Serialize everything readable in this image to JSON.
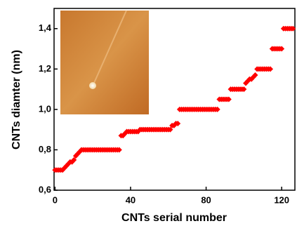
{
  "chart_data": {
    "type": "scatter",
    "x_label": "CNTs serial number",
    "y_label": "CNTs diamter (nm)",
    "color": "#ff0000",
    "x": [
      0,
      1,
      2,
      3,
      4,
      5,
      6,
      7,
      8,
      9,
      10,
      11,
      12,
      13,
      14,
      15,
      16,
      17,
      18,
      19,
      20,
      21,
      22,
      23,
      24,
      25,
      26,
      27,
      28,
      29,
      30,
      31,
      32,
      33,
      34,
      35,
      36,
      37,
      38,
      39,
      40,
      41,
      42,
      43,
      44,
      45,
      46,
      47,
      48,
      49,
      50,
      51,
      52,
      53,
      54,
      55,
      56,
      57,
      58,
      59,
      60,
      61,
      62,
      63,
      64,
      65,
      66,
      67,
      68,
      69,
      70,
      71,
      72,
      73,
      74,
      75,
      76,
      77,
      78,
      79,
      80,
      81,
      82,
      83,
      84,
      85,
      86,
      87,
      88,
      89,
      90,
      91,
      92,
      93,
      94,
      95,
      96,
      97,
      98,
      99,
      100,
      101,
      102,
      103,
      104,
      105,
      106,
      107,
      108,
      109,
      110,
      111,
      112,
      113,
      114,
      115,
      116,
      117,
      118,
      119,
      120,
      121,
      122,
      123,
      124,
      125,
      126
    ],
    "values": [
      0.7,
      0.7,
      0.7,
      0.7,
      0.7,
      0.71,
      0.72,
      0.73,
      0.74,
      0.74,
      0.75,
      0.77,
      0.78,
      0.79,
      0.8,
      0.8,
      0.8,
      0.8,
      0.8,
      0.8,
      0.8,
      0.8,
      0.8,
      0.8,
      0.8,
      0.8,
      0.8,
      0.8,
      0.8,
      0.8,
      0.8,
      0.8,
      0.8,
      0.8,
      0.8,
      0.87,
      0.87,
      0.88,
      0.89,
      0.89,
      0.89,
      0.89,
      0.89,
      0.89,
      0.89,
      0.9,
      0.9,
      0.9,
      0.9,
      0.9,
      0.9,
      0.9,
      0.9,
      0.9,
      0.9,
      0.9,
      0.9,
      0.9,
      0.9,
      0.9,
      0.9,
      0.9,
      0.92,
      0.92,
      0.93,
      0.93,
      1.0,
      1.0,
      1.0,
      1.0,
      1.0,
      1.0,
      1.0,
      1.0,
      1.0,
      1.0,
      1.0,
      1.0,
      1.0,
      1.0,
      1.0,
      1.0,
      1.0,
      1.0,
      1.0,
      1.0,
      1.0,
      1.05,
      1.05,
      1.05,
      1.05,
      1.05,
      1.05,
      1.1,
      1.1,
      1.1,
      1.1,
      1.1,
      1.1,
      1.1,
      1.1,
      1.13,
      1.14,
      1.15,
      1.15,
      1.16,
      1.17,
      1.2,
      1.2,
      1.2,
      1.2,
      1.2,
      1.2,
      1.2,
      1.2,
      1.3,
      1.3,
      1.3,
      1.3,
      1.3,
      1.3,
      1.4,
      1.4,
      1.4,
      1.4,
      1.4,
      1.4
    ],
    "xlim": [
      -0.5,
      127
    ],
    "ylim": [
      0.6,
      1.5
    ],
    "xticks": [
      0,
      40,
      80,
      120
    ],
    "yticks": [
      {
        "value": 0.6,
        "label": "0,6"
      },
      {
        "value": 0.8,
        "label": "0,8"
      },
      {
        "value": 1.0,
        "label": "1,0"
      },
      {
        "value": 1.2,
        "label": "1,2"
      },
      {
        "value": 1.4,
        "label": "1,4"
      }
    ]
  }
}
